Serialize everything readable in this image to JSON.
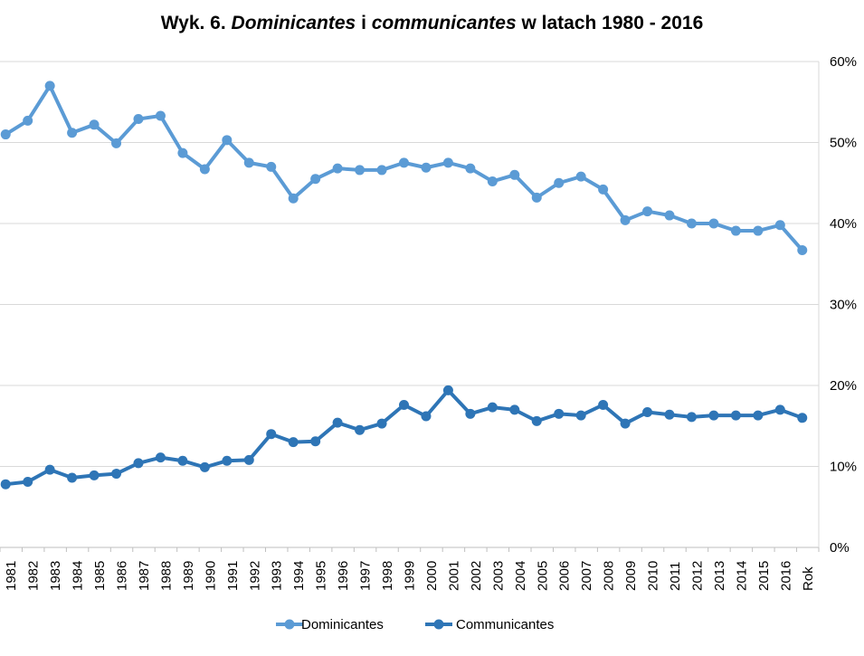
{
  "chart_data": {
    "type": "line",
    "title_parts": [
      {
        "text": "Wyk. 6. ",
        "italic": false
      },
      {
        "text": "Dominicantes",
        "italic": true
      },
      {
        "text": " i ",
        "italic": false
      },
      {
        "text": "communicantes",
        "italic": true
      },
      {
        "text": " w latach 1980 - 2016",
        "italic": false
      }
    ],
    "categories": [
      "1981",
      "1982",
      "1983",
      "1984",
      "1985",
      "1986",
      "1987",
      "1988",
      "1989",
      "1990",
      "1991",
      "1992",
      "1993",
      "1994",
      "1995",
      "1996",
      "1997",
      "1998",
      "1999",
      "2000",
      "2001",
      "2002",
      "2003",
      "2004",
      "2005",
      "2006",
      "2007",
      "2008",
      "2009",
      "2010",
      "2011",
      "2012",
      "2013",
      "2014",
      "2015",
      "2016",
      "Rok"
    ],
    "y_axis": {
      "min": 0,
      "max": 60,
      "step": 10,
      "unit": "%",
      "position": "right",
      "ticks": [
        "0%",
        "10%",
        "20%",
        "30%",
        "40%",
        "50%",
        "60%"
      ]
    },
    "grid": true,
    "legend_position": "bottom",
    "series": [
      {
        "name": "Dominicantes",
        "color": "#5b9bd5",
        "values": [
          51.0,
          52.7,
          57.0,
          51.2,
          52.2,
          49.9,
          52.9,
          53.3,
          48.7,
          46.7,
          50.3,
          47.5,
          47.0,
          43.1,
          45.5,
          46.8,
          46.6,
          46.6,
          47.5,
          46.9,
          47.5,
          46.8,
          45.2,
          46.0,
          43.2,
          45.0,
          45.8,
          44.2,
          40.4,
          41.5,
          41.0,
          40.0,
          40.0,
          39.1,
          39.1,
          39.8,
          36.7
        ]
      },
      {
        "name": "Communicantes",
        "color": "#2e75b6",
        "values": [
          7.8,
          8.1,
          9.6,
          8.6,
          8.9,
          9.1,
          10.4,
          11.1,
          10.7,
          9.9,
          10.7,
          10.8,
          14.0,
          13.0,
          13.1,
          15.4,
          14.5,
          15.3,
          17.6,
          16.2,
          19.4,
          16.5,
          17.3,
          17.0,
          15.6,
          16.5,
          16.3,
          17.6,
          15.3,
          16.7,
          16.4,
          16.1,
          16.3,
          16.3,
          16.3,
          17.0,
          16.0
        ]
      }
    ]
  }
}
